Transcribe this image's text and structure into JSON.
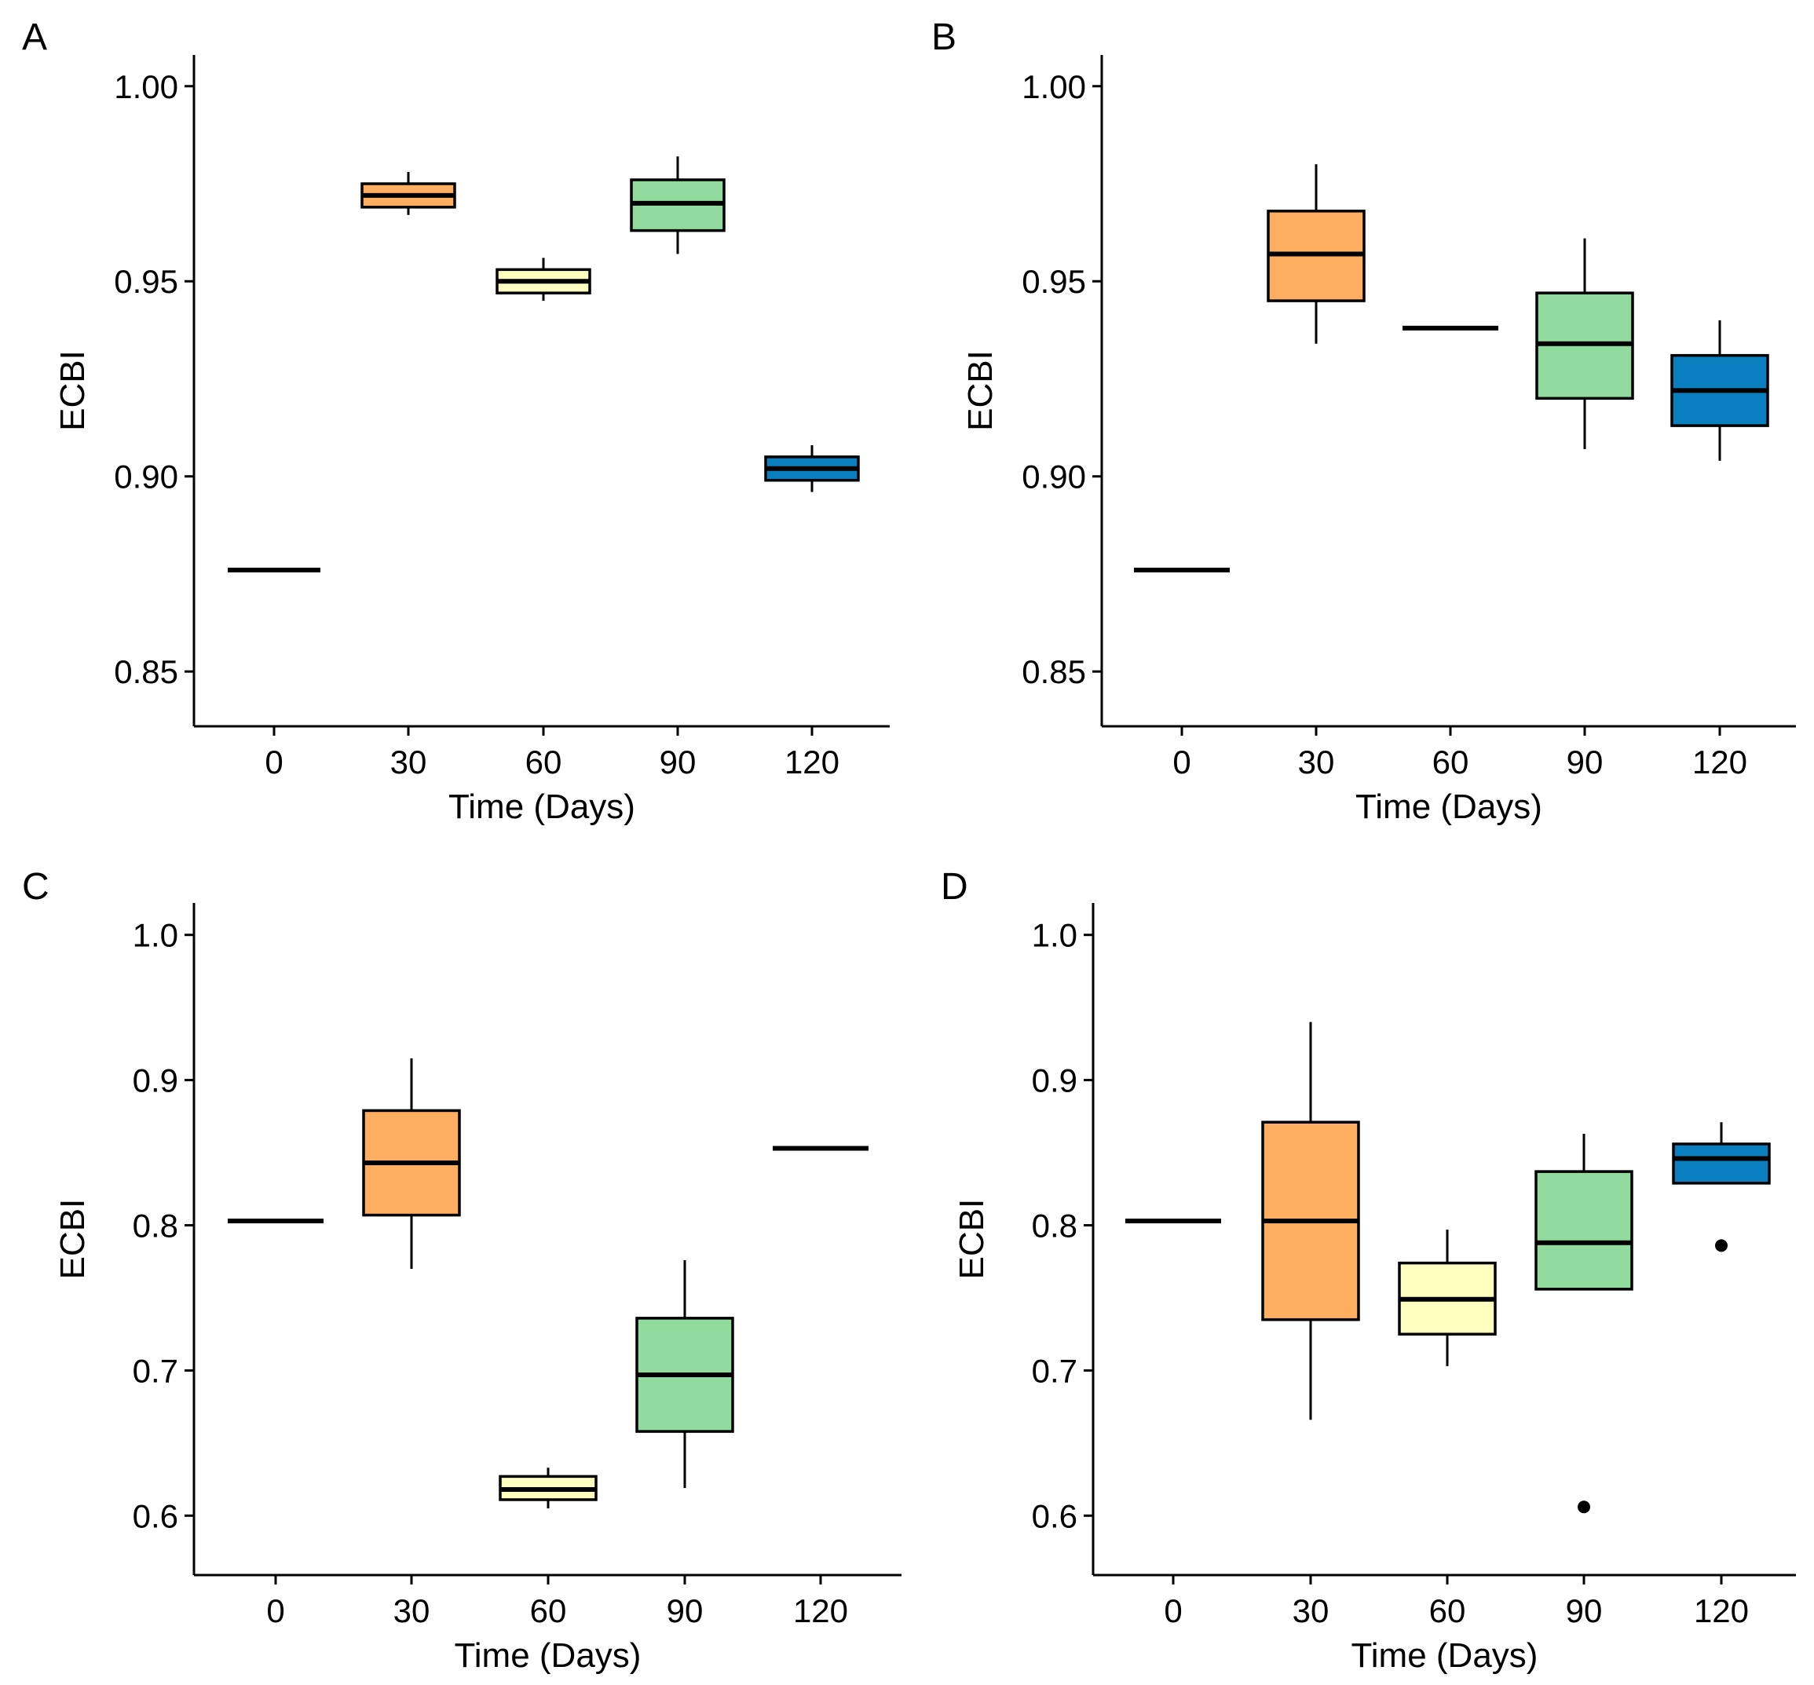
{
  "colors": {
    "0": "#000000",
    "30": "#FDAE61",
    "60": "#FFFFBF",
    "90": "#91DB9E",
    "120": "#0A7FBF"
  },
  "chart_data": [
    {
      "type": "box",
      "panel": "A",
      "xlabel": "Time (Days)",
      "ylabel": "ECBI",
      "ylim": [
        0.843,
        1.008
      ],
      "yticks": [
        0.85,
        0.9,
        0.95,
        1.0
      ],
      "ytick_labels": [
        "0.85",
        "0.90",
        "0.95",
        "1.00"
      ],
      "categories": [
        "0",
        "30",
        "60",
        "90",
        "120"
      ],
      "boxes": [
        {
          "category": "0",
          "min": 0.876,
          "q1": 0.876,
          "median": 0.876,
          "q3": 0.876,
          "max": 0.876,
          "outliers": []
        },
        {
          "category": "30",
          "min": 0.967,
          "q1": 0.969,
          "median": 0.972,
          "q3": 0.975,
          "max": 0.978,
          "outliers": []
        },
        {
          "category": "60",
          "min": 0.945,
          "q1": 0.947,
          "median": 0.95,
          "q3": 0.953,
          "max": 0.956,
          "outliers": []
        },
        {
          "category": "90",
          "min": 0.957,
          "q1": 0.963,
          "median": 0.97,
          "q3": 0.976,
          "max": 0.982,
          "outliers": []
        },
        {
          "category": "120",
          "min": 0.896,
          "q1": 0.899,
          "median": 0.902,
          "q3": 0.905,
          "max": 0.908,
          "outliers": []
        }
      ]
    },
    {
      "type": "box",
      "panel": "B",
      "xlabel": "Time (Days)",
      "ylabel": "ECBI",
      "ylim": [
        0.843,
        1.008
      ],
      "yticks": [
        0.85,
        0.9,
        0.95,
        1.0
      ],
      "ytick_labels": [
        "0.85",
        "0.90",
        "0.95",
        "1.00"
      ],
      "categories": [
        "0",
        "30",
        "60",
        "90",
        "120"
      ],
      "boxes": [
        {
          "category": "0",
          "min": 0.876,
          "q1": 0.876,
          "median": 0.876,
          "q3": 0.876,
          "max": 0.876,
          "outliers": []
        },
        {
          "category": "30",
          "min": 0.934,
          "q1": 0.945,
          "median": 0.957,
          "q3": 0.968,
          "max": 0.98,
          "outliers": []
        },
        {
          "category": "60",
          "min": 0.938,
          "q1": 0.938,
          "median": 0.938,
          "q3": 0.938,
          "max": 0.938,
          "outliers": []
        },
        {
          "category": "90",
          "min": 0.907,
          "q1": 0.92,
          "median": 0.934,
          "q3": 0.947,
          "max": 0.961,
          "outliers": []
        },
        {
          "category": "120",
          "min": 0.904,
          "q1": 0.913,
          "median": 0.922,
          "q3": 0.931,
          "max": 0.94,
          "outliers": []
        }
      ]
    },
    {
      "type": "box",
      "panel": "C",
      "xlabel": "Time (Days)",
      "ylabel": "ECBI",
      "ylim": [
        0.578,
        1.022
      ],
      "yticks": [
        0.6,
        0.7,
        0.8,
        0.9,
        1.0
      ],
      "ytick_labels": [
        "0.6",
        "0.7",
        "0.8",
        "0.9",
        "1.0"
      ],
      "categories": [
        "0",
        "30",
        "60",
        "90",
        "120"
      ],
      "boxes": [
        {
          "category": "0",
          "min": 0.803,
          "q1": 0.803,
          "median": 0.803,
          "q3": 0.803,
          "max": 0.803,
          "outliers": []
        },
        {
          "category": "30",
          "min": 0.77,
          "q1": 0.807,
          "median": 0.843,
          "q3": 0.879,
          "max": 0.915,
          "outliers": []
        },
        {
          "category": "60",
          "min": 0.605,
          "q1": 0.611,
          "median": 0.618,
          "q3": 0.627,
          "max": 0.633,
          "outliers": []
        },
        {
          "category": "90",
          "min": 0.619,
          "q1": 0.658,
          "median": 0.697,
          "q3": 0.736,
          "max": 0.776,
          "outliers": []
        },
        {
          "category": "120",
          "min": 0.853,
          "q1": 0.853,
          "median": 0.853,
          "q3": 0.853,
          "max": 0.853,
          "outliers": []
        }
      ]
    },
    {
      "type": "box",
      "panel": "D",
      "xlabel": "Time (Days)",
      "ylabel": "ECBI",
      "ylim": [
        0.578,
        1.022
      ],
      "yticks": [
        0.6,
        0.7,
        0.8,
        0.9,
        1.0
      ],
      "ytick_labels": [
        "0.6",
        "0.7",
        "0.8",
        "0.9",
        "1.0"
      ],
      "categories": [
        "0",
        "30",
        "60",
        "90",
        "120"
      ],
      "boxes": [
        {
          "category": "0",
          "min": 0.803,
          "q1": 0.803,
          "median": 0.803,
          "q3": 0.803,
          "max": 0.803,
          "outliers": []
        },
        {
          "category": "30",
          "min": 0.666,
          "q1": 0.735,
          "median": 0.803,
          "q3": 0.871,
          "max": 0.94,
          "outliers": []
        },
        {
          "category": "60",
          "min": 0.703,
          "q1": 0.725,
          "median": 0.749,
          "q3": 0.774,
          "max": 0.797,
          "outliers": []
        },
        {
          "category": "90",
          "min": 0.756,
          "q1": 0.756,
          "median": 0.788,
          "q3": 0.837,
          "max": 0.863,
          "outliers": [
            0.606
          ]
        },
        {
          "category": "120",
          "min": 0.829,
          "q1": 0.829,
          "median": 0.846,
          "q3": 0.856,
          "max": 0.871,
          "outliers": [
            0.786
          ]
        }
      ]
    }
  ]
}
